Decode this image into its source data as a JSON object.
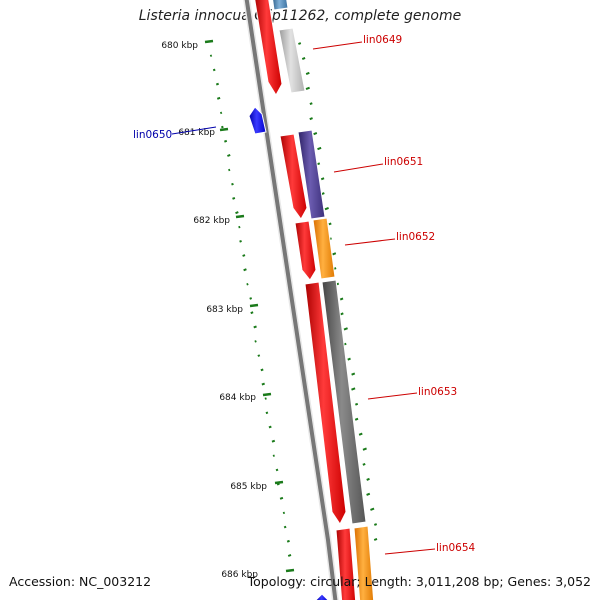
{
  "title": "Listeria innocua Clip11262, complete genome",
  "footer": {
    "accession": "Accession: NC_003212",
    "summary": "Topology: circular; Length: 3,011,208 bp; Genes: 3,052"
  },
  "colors": {
    "backbone": "#777777",
    "cds": "#ff0000",
    "gc_marks": "#1a7a1a",
    "label_red": "#cc0000",
    "label_blue": "#0000aa",
    "gene_blue": "#0000ff",
    "gene_lightgray": "#bbbbbb",
    "gene_purple": "#4b3a8c",
    "gene_orange": "#ff8c00",
    "gene_darkgray": "#666666",
    "gene_steelblue": "#4682b4"
  },
  "scale": {
    "unit": "kbp",
    "ticks": [
      {
        "kbp": 680,
        "label": "680 kbp"
      },
      {
        "kbp": 681,
        "label": "681 kbp"
      },
      {
        "kbp": 682,
        "label": "682 kbp"
      },
      {
        "kbp": 683,
        "label": "683 kbp"
      },
      {
        "kbp": 684,
        "label": "684 kbp"
      },
      {
        "kbp": 685,
        "label": "685 kbp"
      },
      {
        "kbp": 686,
        "label": "686 kbp"
      }
    ]
  },
  "genes": [
    {
      "name": "lin0649",
      "color_key": "gene_lightgray",
      "label_color": "label_red"
    },
    {
      "name": "lin0650",
      "color_key": "gene_blue",
      "label_color": "label_blue"
    },
    {
      "name": "lin0651",
      "color_key": "gene_purple",
      "label_color": "label_red"
    },
    {
      "name": "lin0652",
      "color_key": "gene_orange",
      "label_color": "label_red"
    },
    {
      "name": "lin0653",
      "color_key": "gene_darkgray",
      "label_color": "label_red"
    },
    {
      "name": "lin0654",
      "color_key": "gene_orange",
      "label_color": "label_red"
    }
  ]
}
